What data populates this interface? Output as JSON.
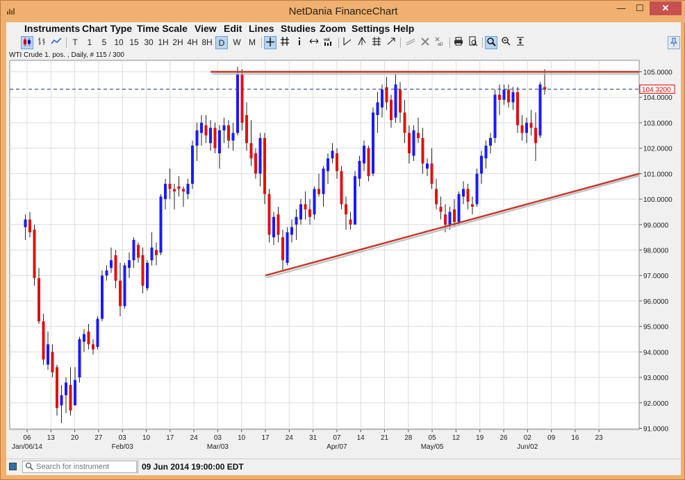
{
  "window": {
    "title": "NetDania FinanceChart",
    "min_label": "—",
    "max_label": "☐",
    "close_label": "✕"
  },
  "menu": [
    "Instruments",
    "Chart Type",
    "Time Scale",
    "View",
    "Edit",
    "Lines",
    "Studies",
    "Zoom",
    "Settings",
    "Help"
  ],
  "toolbar": {
    "timescale": [
      "T",
      "1",
      "5",
      "10",
      "15",
      "30",
      "1H",
      "2H",
      "4H",
      "8H",
      "D",
      "W",
      "M"
    ],
    "active_timescale": "D"
  },
  "chart_info": "WTI Crude 1. pos. , Daily, # 115 / 300",
  "status": {
    "search_placeholder": "Search for instrument",
    "datetime": "09 Jun 2014 19:00:00 EDT"
  },
  "colors": {
    "up": "#1a1aff",
    "down": "#e01010",
    "trend": "#c0392b",
    "ref_line": "#223399"
  },
  "chart_data": {
    "type": "candlestick",
    "instrument": "WTI Crude 1. pos.",
    "interval": "Daily",
    "ylim": [
      91.0,
      105.0
    ],
    "y_ticks": [
      "91.0000",
      "92.0000",
      "93.0000",
      "94.0000",
      "95.0000",
      "96.0000",
      "97.0000",
      "98.0000",
      "99.0000",
      "100.0000",
      "101.0000",
      "102.0000",
      "103.0000",
      "104.0000",
      "105.0000"
    ],
    "x_ticks": [
      {
        "day": "06",
        "month": "Jan/06/14"
      },
      {
        "day": "13",
        "month": ""
      },
      {
        "day": "20",
        "month": ""
      },
      {
        "day": "27",
        "month": ""
      },
      {
        "day": "03",
        "month": "Feb/03"
      },
      {
        "day": "10",
        "month": ""
      },
      {
        "day": "17",
        "month": ""
      },
      {
        "day": "24",
        "month": ""
      },
      {
        "day": "03",
        "month": "Mar/03"
      },
      {
        "day": "10",
        "month": ""
      },
      {
        "day": "17",
        "month": ""
      },
      {
        "day": "24",
        "month": ""
      },
      {
        "day": "31",
        "month": ""
      },
      {
        "day": "07",
        "month": "Apr/07"
      },
      {
        "day": "14",
        "month": ""
      },
      {
        "day": "21",
        "month": ""
      },
      {
        "day": "28",
        "month": ""
      },
      {
        "day": "05",
        "month": "May/05"
      },
      {
        "day": "12",
        "month": ""
      },
      {
        "day": "19",
        "month": ""
      },
      {
        "day": "26",
        "month": ""
      },
      {
        "day": "02",
        "month": "Jun/02"
      },
      {
        "day": "09",
        "month": ""
      },
      {
        "day": "16",
        "month": ""
      },
      {
        "day": "23",
        "month": ""
      }
    ],
    "current_price": "104.3200",
    "current_value": 104.32,
    "resistance": {
      "from_index": 0,
      "value": 105.0
    },
    "support_trend": {
      "start_week": 10,
      "start_value": 97.0,
      "end_value": 101.0
    },
    "ohlc": [
      [
        98.9,
        99.4,
        98.4,
        99.2
      ],
      [
        99.2,
        99.5,
        98.5,
        98.7
      ],
      [
        98.8,
        99.0,
        96.6,
        96.9
      ],
      [
        96.9,
        97.3,
        95.1,
        95.2
      ],
      [
        95.2,
        95.5,
        93.5,
        93.7
      ],
      [
        93.5,
        94.8,
        93.3,
        94.3
      ],
      [
        94.0,
        94.3,
        93.0,
        93.2
      ],
      [
        93.4,
        93.5,
        91.5,
        91.8
      ],
      [
        91.9,
        92.7,
        91.2,
        92.3
      ],
      [
        92.3,
        93.0,
        91.6,
        92.8
      ],
      [
        92.7,
        93.4,
        91.5,
        91.7
      ],
      [
        91.9,
        93.4,
        91.9,
        92.9
      ],
      [
        93.0,
        94.6,
        92.8,
        94.5
      ],
      [
        94.4,
        94.9,
        94.0,
        94.7
      ],
      [
        94.8,
        95.1,
        94.1,
        94.3
      ],
      [
        94.3,
        94.5,
        93.9,
        94.1
      ],
      [
        94.2,
        95.4,
        94.1,
        95.3
      ],
      [
        95.3,
        97.2,
        95.2,
        97.0
      ],
      [
        97.0,
        97.4,
        96.8,
        97.2
      ],
      [
        97.3,
        98.1,
        97.1,
        97.6
      ],
      [
        97.8,
        98.0,
        96.5,
        96.8
      ],
      [
        96.8,
        97.5,
        95.4,
        95.8
      ],
      [
        95.8,
        97.5,
        95.7,
        97.4
      ],
      [
        97.3,
        97.9,
        96.9,
        97.6
      ],
      [
        97.6,
        98.5,
        97.3,
        98.4
      ],
      [
        98.2,
        98.3,
        97.5,
        97.7
      ],
      [
        97.8,
        98.1,
        96.3,
        96.6
      ],
      [
        96.5,
        97.6,
        96.4,
        97.5
      ],
      [
        97.6,
        98.7,
        97.4,
        98.1
      ],
      [
        98.0,
        98.3,
        97.4,
        97.8
      ],
      [
        97.9,
        100.2,
        97.8,
        100.1
      ],
      [
        100.0,
        100.8,
        99.6,
        100.6
      ],
      [
        100.6,
        101.2,
        100.0,
        100.4
      ],
      [
        100.4,
        100.6,
        99.6,
        100.3
      ],
      [
        100.5,
        100.9,
        100.1,
        100.4
      ],
      [
        100.4,
        100.5,
        99.7,
        100.3
      ],
      [
        100.2,
        100.8,
        100.0,
        100.6
      ],
      [
        100.6,
        102.3,
        100.4,
        102.1
      ],
      [
        102.1,
        103.0,
        101.5,
        102.7
      ],
      [
        102.6,
        103.3,
        102.1,
        103.0
      ],
      [
        102.9,
        103.3,
        102.2,
        102.5
      ],
      [
        102.2,
        103.1,
        101.9,
        102.8
      ],
      [
        102.8,
        103.0,
        101.8,
        102.0
      ],
      [
        101.8,
        102.9,
        101.2,
        102.7
      ],
      [
        102.7,
        103.2,
        102.2,
        102.9
      ],
      [
        102.9,
        103.1,
        102.0,
        102.3
      ],
      [
        102.3,
        103.0,
        101.9,
        102.6
      ],
      [
        102.6,
        105.2,
        102.5,
        104.9
      ],
      [
        104.9,
        105.1,
        102.7,
        103.0
      ],
      [
        103.3,
        103.8,
        101.9,
        102.2
      ],
      [
        102.2,
        103.1,
        101.3,
        101.6
      ],
      [
        101.8,
        102.0,
        100.8,
        101.0
      ],
      [
        101.0,
        102.6,
        100.5,
        102.4
      ],
      [
        102.4,
        102.6,
        99.8,
        100.2
      ],
      [
        100.2,
        100.4,
        98.3,
        98.6
      ],
      [
        98.5,
        99.5,
        98.2,
        99.3
      ],
      [
        99.4,
        99.7,
        98.3,
        98.6
      ],
      [
        98.5,
        98.8,
        97.2,
        97.6
      ],
      [
        97.5,
        98.9,
        97.4,
        98.7
      ],
      [
        98.6,
        99.2,
        98.3,
        98.9
      ],
      [
        99.0,
        99.6,
        98.4,
        99.3
      ],
      [
        99.2,
        100.0,
        99.0,
        99.8
      ],
      [
        99.8,
        100.3,
        99.2,
        99.6
      ],
      [
        99.6,
        100.0,
        99.0,
        99.3
      ],
      [
        99.4,
        100.5,
        99.2,
        100.4
      ],
      [
        100.4,
        101.0,
        100.1,
        100.2
      ],
      [
        100.2,
        101.3,
        99.7,
        101.2
      ],
      [
        101.1,
        101.8,
        100.6,
        101.6
      ],
      [
        101.6,
        102.2,
        101.4,
        101.9
      ],
      [
        101.8,
        102.0,
        100.8,
        101.1
      ],
      [
        101.1,
        101.3,
        99.6,
        99.8
      ],
      [
        99.8,
        100.1,
        98.8,
        99.4
      ],
      [
        99.2,
        99.5,
        98.8,
        99.0
      ],
      [
        99.0,
        101.1,
        99.0,
        100.9
      ],
      [
        100.8,
        101.7,
        100.5,
        101.5
      ],
      [
        101.4,
        102.3,
        101.1,
        102.1
      ],
      [
        102.0,
        102.1,
        100.7,
        100.9
      ],
      [
        101.0,
        103.6,
        100.9,
        103.4
      ],
      [
        103.3,
        104.2,
        102.6,
        103.8
      ],
      [
        103.6,
        104.5,
        103.2,
        104.3
      ],
      [
        104.4,
        104.8,
        103.5,
        103.8
      ],
      [
        103.9,
        104.1,
        102.8,
        103.1
      ],
      [
        103.2,
        104.9,
        103.0,
        104.5
      ],
      [
        104.3,
        104.6,
        103.0,
        103.4
      ],
      [
        103.4,
        103.9,
        102.2,
        102.6
      ],
      [
        102.6,
        102.9,
        101.4,
        101.8
      ],
      [
        101.7,
        102.9,
        101.5,
        102.7
      ],
      [
        102.6,
        103.2,
        102.2,
        102.4
      ],
      [
        102.4,
        102.8,
        101.0,
        101.4
      ],
      [
        101.2,
        101.6,
        100.9,
        101.4
      ],
      [
        101.4,
        102.0,
        100.4,
        100.6
      ],
      [
        100.4,
        100.8,
        99.6,
        99.8
      ],
      [
        99.7,
        100.1,
        99.2,
        99.5
      ],
      [
        99.4,
        99.8,
        98.7,
        99.0
      ],
      [
        99.0,
        99.7,
        98.8,
        99.5
      ],
      [
        99.6,
        100.0,
        98.9,
        99.1
      ],
      [
        99.1,
        100.3,
        99.0,
        100.2
      ],
      [
        100.1,
        100.7,
        99.8,
        100.4
      ],
      [
        100.4,
        100.6,
        99.6,
        99.9
      ],
      [
        99.8,
        100.1,
        99.4,
        99.7
      ],
      [
        99.8,
        101.2,
        99.7,
        101.0
      ],
      [
        101.0,
        101.9,
        100.6,
        101.7
      ],
      [
        101.6,
        102.3,
        101.2,
        102.1
      ],
      [
        102.1,
        102.6,
        101.8,
        102.4
      ],
      [
        102.4,
        104.3,
        102.2,
        104.1
      ],
      [
        104.1,
        104.5,
        103.3,
        103.9
      ],
      [
        103.9,
        104.5,
        103.7,
        104.3
      ],
      [
        104.3,
        104.5,
        103.6,
        103.8
      ],
      [
        103.8,
        104.4,
        103.5,
        104.2
      ],
      [
        104.2,
        104.4,
        102.6,
        102.9
      ],
      [
        102.9,
        103.3,
        102.3,
        102.6
      ],
      [
        102.6,
        103.2,
        102.2,
        103.0
      ],
      [
        103.0,
        103.5,
        102.5,
        102.8
      ],
      [
        102.8,
        103.4,
        101.5,
        102.2
      ],
      [
        102.5,
        104.6,
        102.4,
        104.5
      ],
      [
        104.4,
        105.1,
        104.1,
        104.3
      ]
    ]
  }
}
